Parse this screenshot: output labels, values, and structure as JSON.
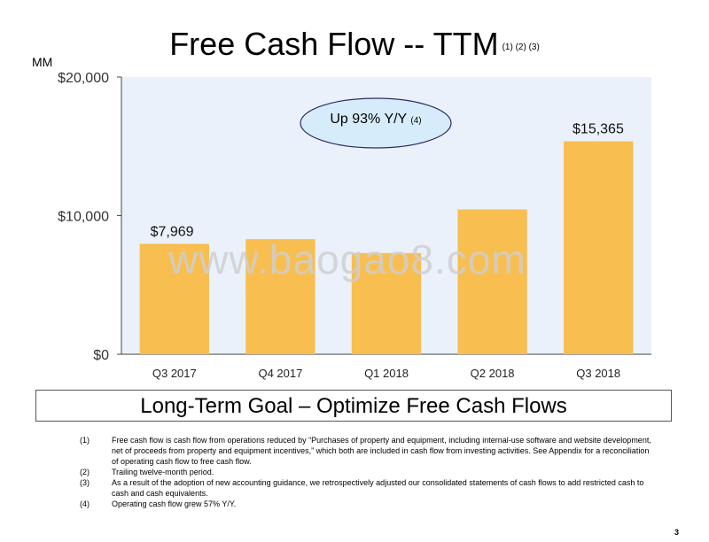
{
  "title": "Free Cash Flow -- TTM",
  "title_refs": "(1) (2) (3)",
  "unit_label": "MM",
  "callout": {
    "text": "Up 93% Y/Y",
    "ref": "(4)"
  },
  "watermark": "www.baogao8.com",
  "goal_banner": "Long-Term Goal – Optimize Free Cash Flows",
  "footnotes": [
    {
      "num": "(1)",
      "text": "Free cash flow is cash flow from operations reduced by “Purchases of property and equipment, including internal-use software and website development, net of proceeds from property and equipment incentives,” which both are included in cash flow from investing activities. See Appendix for a reconciliation of operating cash flow to free cash flow."
    },
    {
      "num": "(2)",
      "text": "Trailing twelve-month period."
    },
    {
      "num": "(3)",
      "text": "As a result of the adoption of new accounting guidance, we retrospectively adjusted our consolidated statements of cash flows to add restricted cash to cash and cash equivalents."
    },
    {
      "num": "(4)",
      "text": "Operating cash flow grew 57% Y/Y."
    }
  ],
  "page_number": "3",
  "colors": {
    "bar": "#F8BE50",
    "plot_bg": "#EAF1FB",
    "callout_fill": "#D7ECFB",
    "callout_stroke": "#2B2B6A"
  },
  "chart_data": {
    "type": "bar",
    "title": "Free Cash Flow -- TTM",
    "ylabel": "MM",
    "categories": [
      "Q3 2017",
      "Q4 2017",
      "Q1 2018",
      "Q2 2018",
      "Q3 2018"
    ],
    "values": [
      7969,
      8300,
      7300,
      10450,
      15365
    ],
    "data_labels": [
      "$7,969",
      "",
      "",
      "",
      "$15,365"
    ],
    "ylim": [
      0,
      20000
    ],
    "yticks": [
      0,
      10000,
      20000
    ],
    "ytick_labels": [
      "$0",
      "$10,000",
      "$20,000"
    ]
  }
}
